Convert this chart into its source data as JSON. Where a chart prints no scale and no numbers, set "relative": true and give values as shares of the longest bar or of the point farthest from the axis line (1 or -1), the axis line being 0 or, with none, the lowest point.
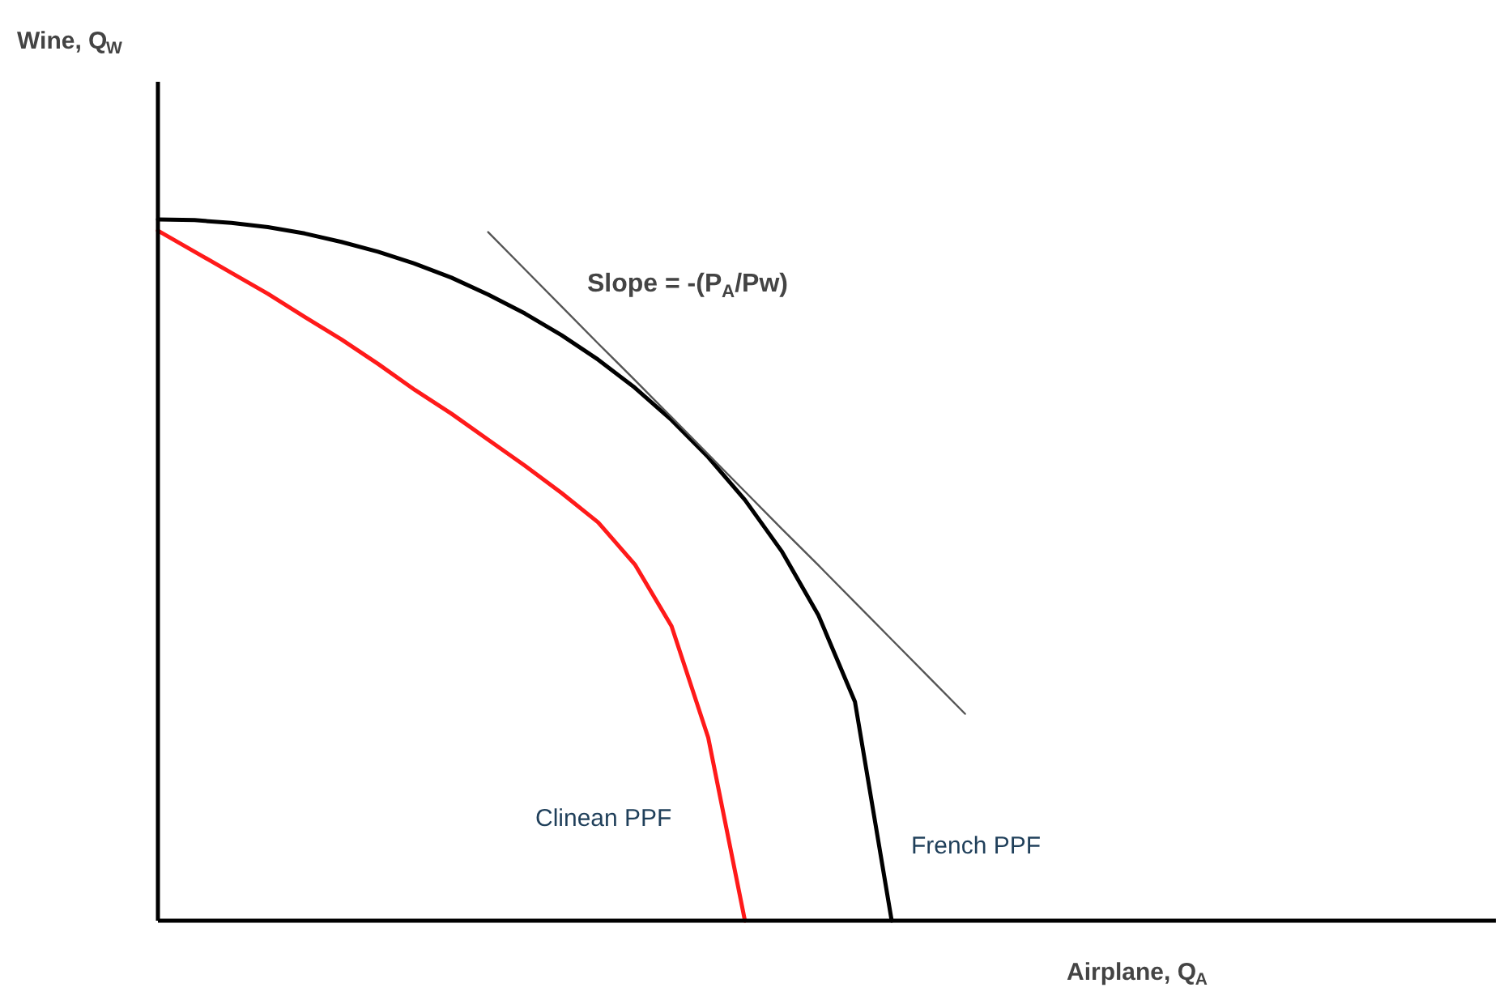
{
  "chart_data": {
    "type": "line",
    "relative": true,
    "xlabel": "Airplane, Q$_{A}$",
    "annotations": [
      "Wine, Q$_{W}$",
      "Slope = -(P$_{A}$/Pw)"
    ],
    "categories": [
      null,
      null,
      null,
      null,
      null,
      null,
      null,
      null,
      null,
      null,
      null,
      null,
      null,
      null,
      null,
      null,
      null,
      null,
      null,
      null,
      null,
      null,
      null,
      null,
      null,
      null,
      null,
      null,
      null,
      null,
      null,
      null,
      null,
      null,
      null,
      null,
      null
    ],
    "series": [
      {
        "name": "French PPF",
        "color": "#000000",
        "values": [
          1,
          0.999,
          0.995,
          0.989,
          0.98,
          0.968,
          0.954,
          0.937,
          0.917,
          0.893,
          0.866,
          0.835,
          0.8,
          0.76,
          0.714,
          0.661,
          0.6,
          0.527,
          0.436,
          0.312,
          0,
          null,
          null,
          null,
          null,
          null,
          null,
          null,
          null,
          null,
          null,
          null,
          null,
          null,
          null,
          null,
          null
        ]
      },
      {
        "name": "Clinean PPF",
        "color": "#ff1a1a",
        "values": [
          0.984,
          0.954,
          0.924,
          0.894,
          0.861,
          0.829,
          0.794,
          0.757,
          0.723,
          0.686,
          0.649,
          0.61,
          0.568,
          0.508,
          0.42,
          0.261,
          0,
          null,
          null,
          null,
          null,
          null,
          null,
          null,
          null,
          null,
          null,
          null,
          null,
          null,
          null,
          null,
          null,
          null,
          null,
          null,
          null
        ]
      },
      {
        "color": "#555555",
        "values": [
          null,
          null,
          null,
          null,
          null,
          null,
          null,
          null,
          null,
          0.982,
          0.929,
          0.876,
          0.823,
          0.771,
          0.718,
          0.665,
          0.612,
          0.559,
          0.507,
          0.454,
          0.401,
          0.348,
          0.295,
          null,
          null,
          null,
          null,
          null,
          null,
          null,
          null,
          null,
          null,
          null,
          null,
          null,
          null
        ]
      }
    ]
  }
}
